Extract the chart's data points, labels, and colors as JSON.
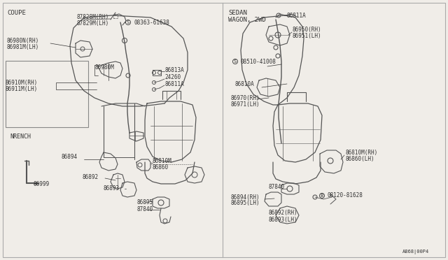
{
  "bg_color": "#f0ede8",
  "border_color": "#999999",
  "text_color": "#333333",
  "diagram_color": "#555555",
  "left_label": "COUPE",
  "right_label_1": "SEDAN",
  "right_label_2": "WAGON, 2WD",
  "footer": "A868|00P4",
  "nrench_label": "NRENCH",
  "nrench_part": "86999",
  "fs": 5.5,
  "lw": 0.7
}
